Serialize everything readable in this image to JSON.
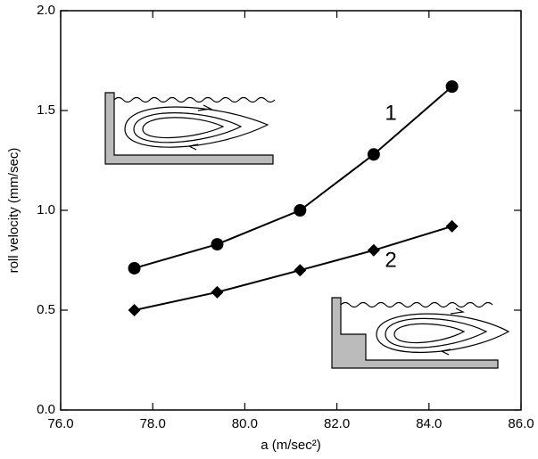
{
  "chart_data": {
    "type": "line",
    "x_label": "a (m/sec²)",
    "y_label": "roll velocity (mm/sec)",
    "series": [
      {
        "name": "1",
        "color": "#000000",
        "marker": "circle",
        "x": [
          77.6,
          79.4,
          81.2,
          82.8,
          84.5
        ],
        "values": [
          0.71,
          0.83,
          1.0,
          1.28,
          1.62
        ]
      },
      {
        "name": "2",
        "color": "#000000",
        "marker": "diamond",
        "x": [
          77.6,
          79.4,
          81.2,
          82.8,
          84.5
        ],
        "values": [
          0.5,
          0.59,
          0.7,
          0.8,
          0.92
        ]
      }
    ],
    "xlim": [
      76,
      86
    ],
    "xticks": [
      {
        "value": 76,
        "label": "76.0"
      },
      {
        "value": 78,
        "label": "78.0"
      },
      {
        "value": 80,
        "label": "80.0"
      },
      {
        "value": 82,
        "label": "82.0"
      },
      {
        "value": 84,
        "label": "84.0"
      },
      {
        "value": 86,
        "label": "86.0"
      }
    ],
    "ylim": [
      0,
      2
    ],
    "yticks": [
      {
        "value": 0,
        "label": "0.0"
      },
      0.5,
      {
        "value": 1,
        "label": "1.0"
      },
      1.5,
      {
        "value": 2,
        "label": "2.0"
      }
    ],
    "grid": false
  }
}
